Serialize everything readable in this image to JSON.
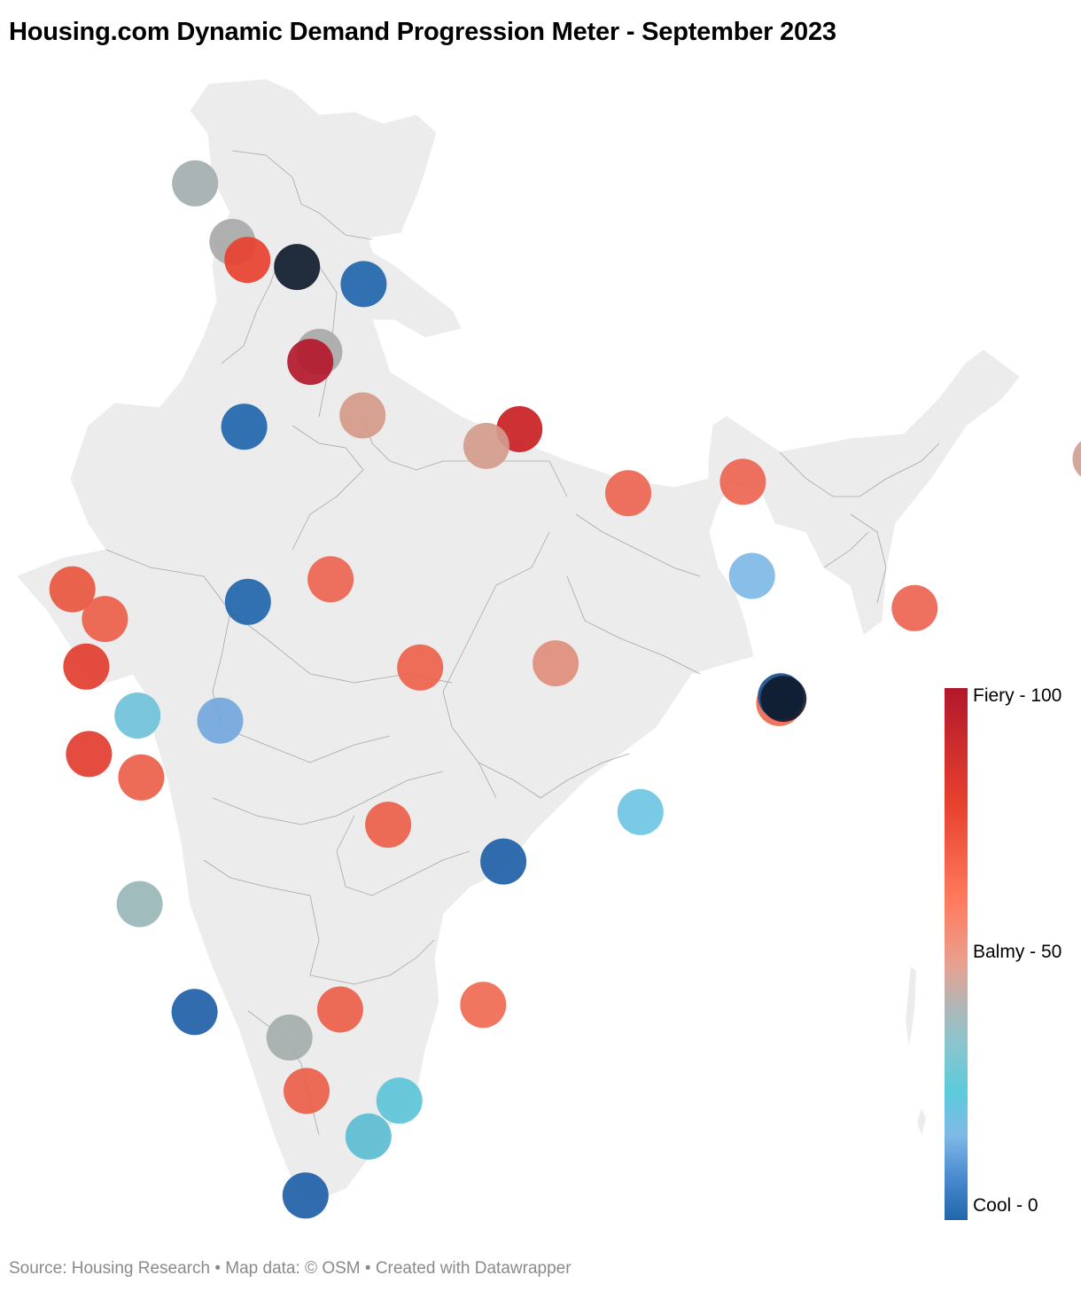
{
  "title": "Housing.com Dynamic Demand Progression Meter - September 2023",
  "legend": {
    "top_label": "Fiery - 100",
    "mid_label": "Balmy - 50",
    "bottom_label": "Cool - 0"
  },
  "source": {
    "text": "Source: Housing Research • Map data: © OSM  • Created with Datawrapper"
  },
  "colors": {
    "land": "#ececec",
    "border": "#9a9a9a",
    "fiery": "#b2182b",
    "balmy": "#e8a190",
    "cool": "#2166ac",
    "dark": "#0f1b2d",
    "source_text": "#8a8a8a"
  },
  "markers": [
    {
      "id": "m1",
      "lon": 74.87,
      "lat": 32.73,
      "color": "#a3aeae"
    },
    {
      "id": "m2",
      "lon": 75.57,
      "lat": 31.33,
      "color": "#a9a9a9"
    },
    {
      "id": "m3",
      "lon": 75.85,
      "lat": 30.9,
      "color": "#e8412f"
    },
    {
      "id": "m4",
      "lon": 76.78,
      "lat": 30.73,
      "color": "#0f1b2d"
    },
    {
      "id": "m5",
      "lon": 78.03,
      "lat": 30.32,
      "color": "#2166ac"
    },
    {
      "id": "m6",
      "lon": 77.2,
      "lat": 28.7,
      "color": "#a9a9a9"
    },
    {
      "id": "m7",
      "lon": 77.03,
      "lat": 28.46,
      "color": "#b2182b"
    },
    {
      "id": "m8",
      "lon": 75.79,
      "lat": 26.91,
      "color": "#2166ac"
    },
    {
      "id": "m9",
      "lon": 78.01,
      "lat": 27.18,
      "color": "#d59a8a"
    },
    {
      "id": "m10",
      "lon": 80.95,
      "lat": 26.85,
      "color": "#c91f22"
    },
    {
      "id": "m11",
      "lon": 80.33,
      "lat": 26.45,
      "color": "#d29b8c"
    },
    {
      "id": "m12",
      "lon": 82.99,
      "lat": 25.32,
      "color": "#eb6550"
    },
    {
      "id": "m13",
      "lon": 85.14,
      "lat": 25.59,
      "color": "#eb6550"
    },
    {
      "id": "m14",
      "lon": 91.75,
      "lat": 26.14,
      "color": "#cfa093"
    },
    {
      "id": "m15",
      "lon": 72.57,
      "lat": 23.02,
      "color": "#e8563e"
    },
    {
      "id": "m16",
      "lon": 73.18,
      "lat": 22.31,
      "color": "#ec604a"
    },
    {
      "id": "m17",
      "lon": 75.86,
      "lat": 22.72,
      "color": "#2166ac"
    },
    {
      "id": "m18",
      "lon": 77.41,
      "lat": 23.26,
      "color": "#eb6550"
    },
    {
      "id": "m19",
      "lon": 85.31,
      "lat": 23.34,
      "color": "#7fb9e6"
    },
    {
      "id": "m20",
      "lon": 88.36,
      "lat": 22.57,
      "color": "#eb6550"
    },
    {
      "id": "m21",
      "lon": 72.83,
      "lat": 21.17,
      "color": "#e23d2f"
    },
    {
      "id": "m22",
      "lon": 79.09,
      "lat": 21.15,
      "color": "#ee624b"
    },
    {
      "id": "m23",
      "lon": 81.63,
      "lat": 21.25,
      "color": "#df8e7c"
    },
    {
      "id": "m24",
      "lon": 85.82,
      "lat": 20.3,
      "color": "#f06850"
    },
    {
      "id": "m25",
      "lon": 85.85,
      "lat": 20.46,
      "color": "#1a4f8e"
    },
    {
      "id": "m26",
      "lon": 85.9,
      "lat": 20.4,
      "color": "#0f1b2d"
    },
    {
      "id": "m27",
      "lon": 73.79,
      "lat": 20.0,
      "color": "#6ec1da"
    },
    {
      "id": "m28",
      "lon": 75.34,
      "lat": 19.88,
      "color": "#73a7dc"
    },
    {
      "id": "m29",
      "lon": 72.88,
      "lat": 19.08,
      "color": "#e23d2f"
    },
    {
      "id": "m30",
      "lon": 73.86,
      "lat": 18.52,
      "color": "#ec604a"
    },
    {
      "id": "m31",
      "lon": 83.22,
      "lat": 17.69,
      "color": "#6ec5e2"
    },
    {
      "id": "m32",
      "lon": 78.49,
      "lat": 17.39,
      "color": "#ec604a"
    },
    {
      "id": "m33",
      "lon": 80.65,
      "lat": 16.51,
      "color": "#1f5fa8"
    },
    {
      "id": "m34",
      "lon": 73.83,
      "lat": 15.49,
      "color": "#98b6b6"
    },
    {
      "id": "m35",
      "lon": 74.86,
      "lat": 12.91,
      "color": "#1f5fa8"
    },
    {
      "id": "m36",
      "lon": 77.59,
      "lat": 12.97,
      "color": "#ec604a"
    },
    {
      "id": "m37",
      "lon": 80.27,
      "lat": 13.08,
      "color": "#f06a52"
    },
    {
      "id": "m38",
      "lon": 76.64,
      "lat": 12.3,
      "color": "#a5acac"
    },
    {
      "id": "m39",
      "lon": 76.96,
      "lat": 11.02,
      "color": "#ec604a"
    },
    {
      "id": "m40",
      "lon": 78.7,
      "lat": 10.79,
      "color": "#5cc4d8"
    },
    {
      "id": "m41",
      "lon": 78.12,
      "lat": 9.93,
      "color": "#5cbcd2"
    },
    {
      "id": "m42",
      "lon": 76.94,
      "lat": 8.52,
      "color": "#1f5fa8"
    }
  ]
}
